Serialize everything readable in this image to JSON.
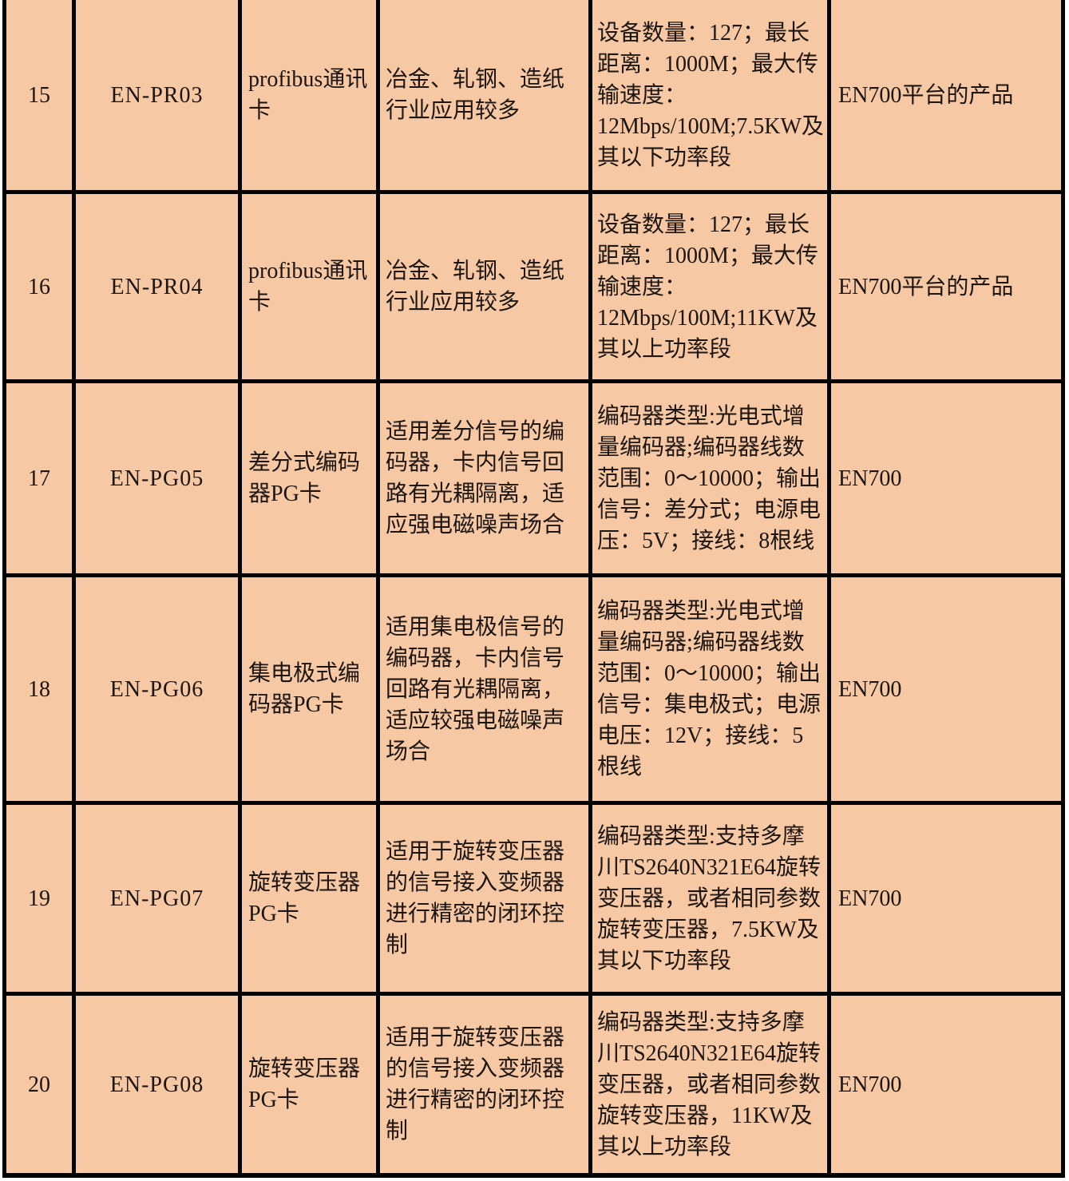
{
  "colors": {
    "cell_background": "#f6c9a4",
    "grid_border": "#000000",
    "text": "#1c1511",
    "page_background": "#ffffff"
  },
  "table": {
    "rows": [
      {
        "no": "15",
        "model": "EN-PR03",
        "name": "profibus通讯卡",
        "description": "冶金、轧钢、造纸行业应用较多",
        "specs": "设备数量：127；最长距离：1000M；最大传输速度：12Mbps/100M;7.5KW及其以下功率段",
        "platform": "EN700平台的产品"
      },
      {
        "no": "16",
        "model": "EN-PR04",
        "name": "profibus通讯卡",
        "description": "冶金、轧钢、造纸行业应用较多",
        "specs": "设备数量：127；最长距离：1000M；最大传输速度：12Mbps/100M;11KW及其以上功率段",
        "platform": "EN700平台的产品"
      },
      {
        "no": "17",
        "model": "EN-PG05",
        "name": "差分式编码器PG卡",
        "description": "适用差分信号的编码器，卡内信号回路有光耦隔离，适应强电磁噪声场合",
        "specs": "编码器类型:光电式增量编码器;编码器线数范围：0～10000；输出信号：差分式；电源电压：5V；接线：8根线",
        "platform": "EN700"
      },
      {
        "no": "18",
        "model": "EN-PG06",
        "name": "集电极式编码器PG卡",
        "description": "适用集电极信号的编码器，卡内信号回路有光耦隔离，适应较强电磁噪声场合",
        "specs": "编码器类型:光电式增量编码器;编码器线数范围：0～10000；输出信号：集电极式；电源电压：12V；接线：5根线",
        "platform": "EN700"
      },
      {
        "no": "19",
        "model": "EN-PG07",
        "name": "旋转变压器PG卡",
        "description": "适用于旋转变压器的信号接入变频器进行精密的闭环控制",
        "specs": "编码器类型:支持多摩川TS2640N321E64旋转变压器，或者相同参数旋转变压器，7.5KW及其以下功率段",
        "platform": "EN700"
      },
      {
        "no": "20",
        "model": "EN-PG08",
        "name": "旋转变压器PG卡",
        "description": "适用于旋转变压器的信号接入变频器进行精密的闭环控制",
        "specs": "编码器类型:支持多摩川TS2640N321E64旋转变压器，或者相同参数旋转变压器，11KW及其以上功率段",
        "platform": "EN700"
      }
    ]
  }
}
